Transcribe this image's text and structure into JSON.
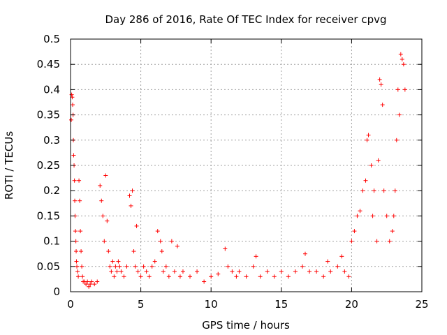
{
  "chart_data": {
    "type": "scatter",
    "title": "Day 286 of 2016, Rate Of TEC Index for receiver cpvg",
    "xlabel": "GPS time / hours",
    "ylabel": "ROTI / TECUs",
    "xlim": [
      0,
      25
    ],
    "ylim": [
      0,
      0.5
    ],
    "xticks": [
      "0",
      "5",
      "10",
      "15",
      "20",
      "25"
    ],
    "yticks": [
      "0",
      "0.05",
      "0.1",
      "0.15",
      "0.2",
      "0.25",
      "0.3",
      "0.35",
      "0.4",
      "0.45",
      "0.5"
    ],
    "grid": true,
    "marker": "+",
    "color": "#ff0000",
    "series": [
      {
        "name": "ROTI",
        "x": [
          0.05,
          0.08,
          0.12,
          0.15,
          0.18,
          0.2,
          0.22,
          0.25,
          0.28,
          0.3,
          0.32,
          0.35,
          0.38,
          0.4,
          0.42,
          0.45,
          0.5,
          0.55,
          0.6,
          0.65,
          0.7,
          0.75,
          0.8,
          0.85,
          0.9,
          1.0,
          1.1,
          1.2,
          1.3,
          1.4,
          1.5,
          1.7,
          1.9,
          2.1,
          2.2,
          2.3,
          2.4,
          2.5,
          2.6,
          2.7,
          2.8,
          2.9,
          3.0,
          3.1,
          3.2,
          3.3,
          3.4,
          3.5,
          3.6,
          3.8,
          4.0,
          4.2,
          4.3,
          4.4,
          4.5,
          4.6,
          4.7,
          4.8,
          5.0,
          5.2,
          5.4,
          5.6,
          5.8,
          6.0,
          6.2,
          6.4,
          6.5,
          6.6,
          6.8,
          7.0,
          7.2,
          7.4,
          7.6,
          7.8,
          8.0,
          8.5,
          9.0,
          9.5,
          10.0,
          10.5,
          11.0,
          11.2,
          11.5,
          11.8,
          12.0,
          12.5,
          13.0,
          13.2,
          13.5,
          14.0,
          14.5,
          15.0,
          15.5,
          16.0,
          16.5,
          16.7,
          17.0,
          17.5,
          18.0,
          18.3,
          18.5,
          19.0,
          19.3,
          19.5,
          19.8,
          20.0,
          20.2,
          20.4,
          20.6,
          20.8,
          21.0,
          21.1,
          21.2,
          21.4,
          21.5,
          21.6,
          21.8,
          21.9,
          22.0,
          22.1,
          22.2,
          22.3,
          22.5,
          22.7,
          22.9,
          23.0,
          23.1,
          23.2,
          23.3,
          23.4,
          23.5,
          23.6,
          23.7,
          23.8
        ],
        "y": [
          0.34,
          0.39,
          0.385,
          0.37,
          0.35,
          0.3,
          0.27,
          0.25,
          0.22,
          0.18,
          0.15,
          0.12,
          0.1,
          0.08,
          0.06,
          0.05,
          0.04,
          0.03,
          0.22,
          0.18,
          0.12,
          0.08,
          0.05,
          0.03,
          0.02,
          0.02,
          0.015,
          0.02,
          0.01,
          0.015,
          0.02,
          0.015,
          0.02,
          0.21,
          0.18,
          0.15,
          0.1,
          0.23,
          0.14,
          0.08,
          0.05,
          0.04,
          0.06,
          0.03,
          0.05,
          0.04,
          0.06,
          0.05,
          0.04,
          0.03,
          0.05,
          0.19,
          0.17,
          0.2,
          0.08,
          0.05,
          0.13,
          0.04,
          0.03,
          0.05,
          0.04,
          0.03,
          0.05,
          0.06,
          0.12,
          0.1,
          0.08,
          0.04,
          0.05,
          0.03,
          0.1,
          0.04,
          0.09,
          0.03,
          0.04,
          0.03,
          0.04,
          0.02,
          0.03,
          0.035,
          0.085,
          0.05,
          0.04,
          0.03,
          0.04,
          0.03,
          0.05,
          0.07,
          0.03,
          0.04,
          0.03,
          0.04,
          0.03,
          0.04,
          0.05,
          0.075,
          0.04,
          0.04,
          0.03,
          0.06,
          0.04,
          0.05,
          0.07,
          0.04,
          0.03,
          0.1,
          0.12,
          0.15,
          0.16,
          0.2,
          0.22,
          0.3,
          0.31,
          0.25,
          0.15,
          0.2,
          0.1,
          0.26,
          0.42,
          0.41,
          0.37,
          0.2,
          0.15,
          0.1,
          0.12,
          0.15,
          0.2,
          0.3,
          0.4,
          0.35,
          0.47,
          0.46,
          0.45,
          0.4
        ]
      }
    ]
  }
}
